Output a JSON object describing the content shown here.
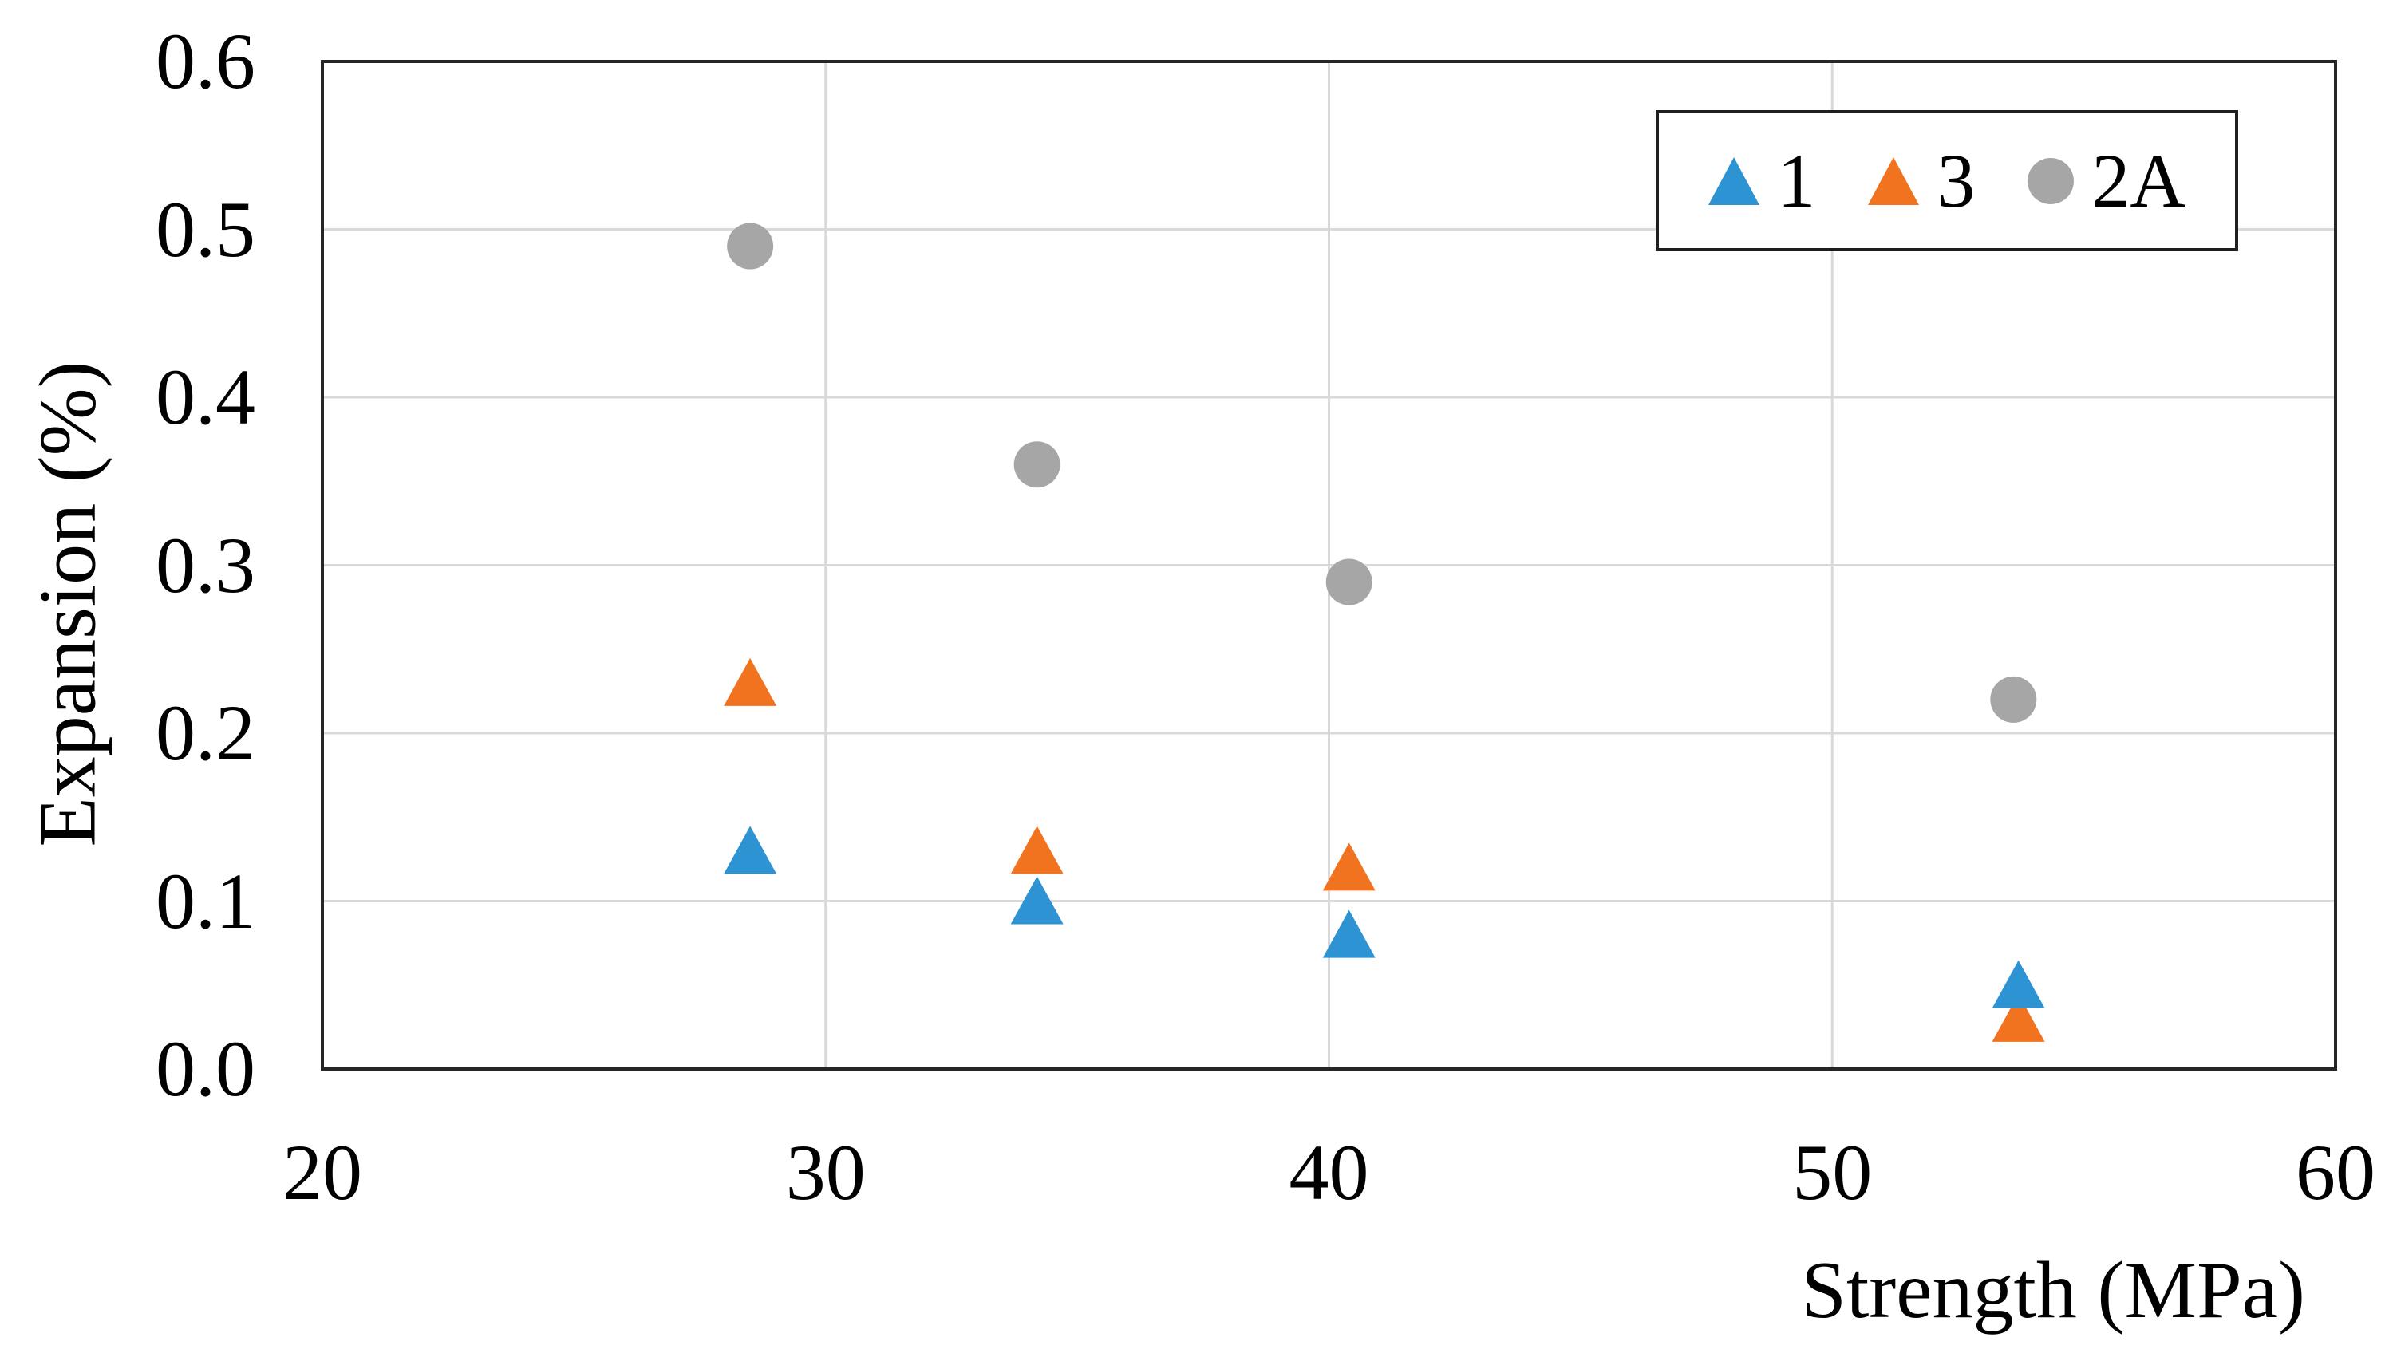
{
  "figure": {
    "x_axis_title": "Strength (MPa)",
    "y_axis_title": "Expansion (%)"
  },
  "chart_data": {
    "type": "scatter",
    "title": "",
    "xlabel": "Strength (MPa)",
    "ylabel": "Expansion (%)",
    "xlim": [
      20,
      60
    ],
    "ylim": [
      0.0,
      0.6
    ],
    "x_ticks": [
      "20",
      "30",
      "40",
      "50",
      "60"
    ],
    "y_ticks": [
      "0.0",
      "0.1",
      "0.2",
      "0.3",
      "0.4",
      "0.5",
      "0.6"
    ],
    "x_gridlines": [
      30,
      40,
      50
    ],
    "y_gridlines": [
      0.1,
      0.2,
      0.3,
      0.4,
      0.5
    ],
    "grid": true,
    "legend_position": "top-right",
    "series": [
      {
        "name": "1",
        "marker": "triangle",
        "color": "#2D93D3",
        "points": [
          [
            28.5,
            0.13
          ],
          [
            34.2,
            0.1
          ],
          [
            40.4,
            0.08
          ],
          [
            53.7,
            0.05
          ]
        ]
      },
      {
        "name": "3",
        "marker": "triangle",
        "color": "#F1731F",
        "points": [
          [
            28.5,
            0.23
          ],
          [
            34.2,
            0.13
          ],
          [
            40.4,
            0.12
          ],
          [
            53.7,
            0.03
          ]
        ]
      },
      {
        "name": "2A",
        "marker": "circle",
        "color": "#A6A6A6",
        "points": [
          [
            28.5,
            0.49
          ],
          [
            34.2,
            0.36
          ],
          [
            40.4,
            0.29
          ],
          [
            53.6,
            0.22
          ]
        ]
      }
    ]
  },
  "colors": {
    "background": "#FFFFFF",
    "grid": "#D9D9D9",
    "plot_border": "#262626",
    "text": "#000000"
  }
}
